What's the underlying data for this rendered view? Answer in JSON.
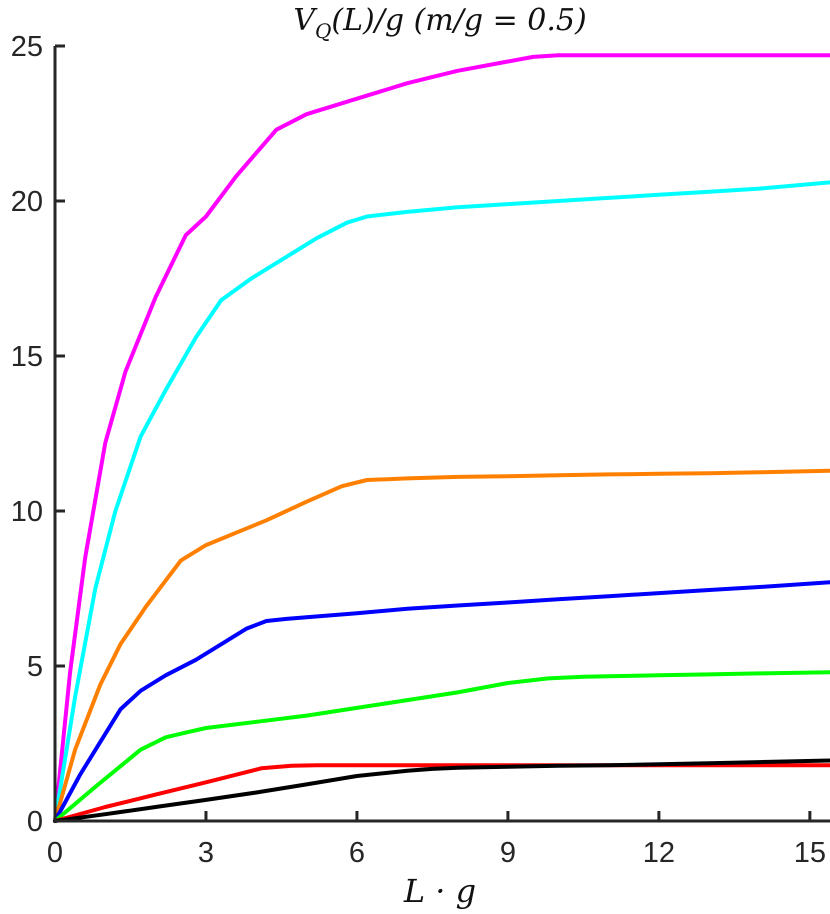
{
  "chart_data": {
    "type": "line",
    "title": "V_Q(L)/g (m/g = 0.5)",
    "title_parts": {
      "main": "V",
      "sub": "Q",
      "rest": "(L)/g (m/g = 0.5)"
    },
    "xlabel": "L · g",
    "ylabel": "",
    "xlim": [
      0,
      15.4
    ],
    "ylim": [
      0,
      25
    ],
    "xticks": [
      0,
      3,
      6,
      9,
      12,
      15
    ],
    "yticks": [
      0,
      5,
      10,
      15,
      20,
      25
    ],
    "grid": false,
    "series": [
      {
        "color": "#ff00ff",
        "x": [
          0,
          0.3,
          0.6,
          1.0,
          1.4,
          2.0,
          2.6,
          3.0,
          3.6,
          4.4,
          5.0,
          6.0,
          7.0,
          8.0,
          9.0,
          9.5,
          10.0,
          11.0,
          12.0,
          13.0,
          14.0,
          15.4
        ],
        "y": [
          0,
          4.8,
          8.5,
          12.2,
          14.5,
          16.9,
          18.9,
          19.5,
          20.8,
          22.3,
          22.8,
          23.3,
          23.8,
          24.2,
          24.5,
          24.65,
          24.7,
          24.7,
          24.7,
          24.7,
          24.7,
          24.7
        ]
      },
      {
        "color": "#00ffff",
        "x": [
          0,
          0.4,
          0.8,
          1.2,
          1.7,
          2.2,
          2.8,
          3.3,
          3.9,
          4.6,
          5.2,
          5.8,
          6.2,
          7.0,
          8.0,
          9.0,
          10.0,
          11.0,
          12.0,
          13.0,
          14.0,
          15.4
        ],
        "y": [
          0,
          4.0,
          7.5,
          10.0,
          12.4,
          13.9,
          15.6,
          16.8,
          17.5,
          18.2,
          18.8,
          19.3,
          19.5,
          19.65,
          19.8,
          19.9,
          20.0,
          20.1,
          20.2,
          20.3,
          20.4,
          20.6
        ]
      },
      {
        "color": "#ff8000",
        "x": [
          0,
          0.4,
          0.9,
          1.3,
          1.8,
          2.5,
          3.0,
          3.6,
          4.2,
          5.0,
          5.7,
          6.2,
          7.0,
          8.0,
          9.0,
          10.0,
          11.0,
          12.0,
          13.0,
          14.0,
          15.4
        ],
        "y": [
          0,
          2.3,
          4.4,
          5.7,
          6.9,
          8.4,
          8.9,
          9.3,
          9.7,
          10.3,
          10.8,
          11.0,
          11.05,
          11.1,
          11.12,
          11.15,
          11.18,
          11.2,
          11.22,
          11.25,
          11.3
        ]
      },
      {
        "color": "#0000ff",
        "x": [
          0,
          0.5,
          1.3,
          1.7,
          2.2,
          2.8,
          3.3,
          3.8,
          4.2,
          4.6,
          5.0,
          6.0,
          7.0,
          8.0,
          9.0,
          10.0,
          11.0,
          12.0,
          13.0,
          14.0,
          15.4
        ],
        "y": [
          0,
          1.5,
          3.6,
          4.2,
          4.7,
          5.2,
          5.7,
          6.2,
          6.45,
          6.52,
          6.57,
          6.7,
          6.85,
          6.95,
          7.05,
          7.15,
          7.25,
          7.35,
          7.45,
          7.55,
          7.7
        ]
      },
      {
        "color": "#00ff00",
        "x": [
          0,
          0.8,
          1.7,
          2.2,
          2.6,
          3.0,
          4.0,
          5.0,
          6.0,
          7.0,
          8.0,
          9.0,
          9.8,
          10.5,
          11.0,
          12.0,
          13.0,
          14.0,
          15.4
        ],
        "y": [
          0,
          1.1,
          2.3,
          2.7,
          2.85,
          3.0,
          3.2,
          3.4,
          3.65,
          3.9,
          4.15,
          4.45,
          4.6,
          4.65,
          4.67,
          4.7,
          4.73,
          4.76,
          4.8
        ]
      },
      {
        "color": "#ff0000",
        "x": [
          0,
          1.0,
          2.0,
          3.0,
          4.1,
          4.7,
          5.2,
          6.0,
          7.0,
          8.0,
          9.0,
          10.0,
          11.0,
          12.0,
          13.0,
          14.0,
          15.4
        ],
        "y": [
          0,
          0.45,
          0.85,
          1.25,
          1.7,
          1.78,
          1.8,
          1.8,
          1.8,
          1.8,
          1.8,
          1.8,
          1.8,
          1.8,
          1.8,
          1.8,
          1.8
        ]
      },
      {
        "color": "#000000",
        "x": [
          0,
          1.0,
          2.0,
          3.0,
          4.0,
          5.0,
          6.0,
          7.0,
          7.5,
          8.0,
          9.0,
          10.0,
          11.0,
          12.0,
          13.0,
          14.0,
          15.4
        ],
        "y": [
          0,
          0.22,
          0.45,
          0.68,
          0.92,
          1.18,
          1.45,
          1.62,
          1.68,
          1.72,
          1.75,
          1.78,
          1.8,
          1.83,
          1.86,
          1.9,
          1.95
        ]
      }
    ]
  }
}
